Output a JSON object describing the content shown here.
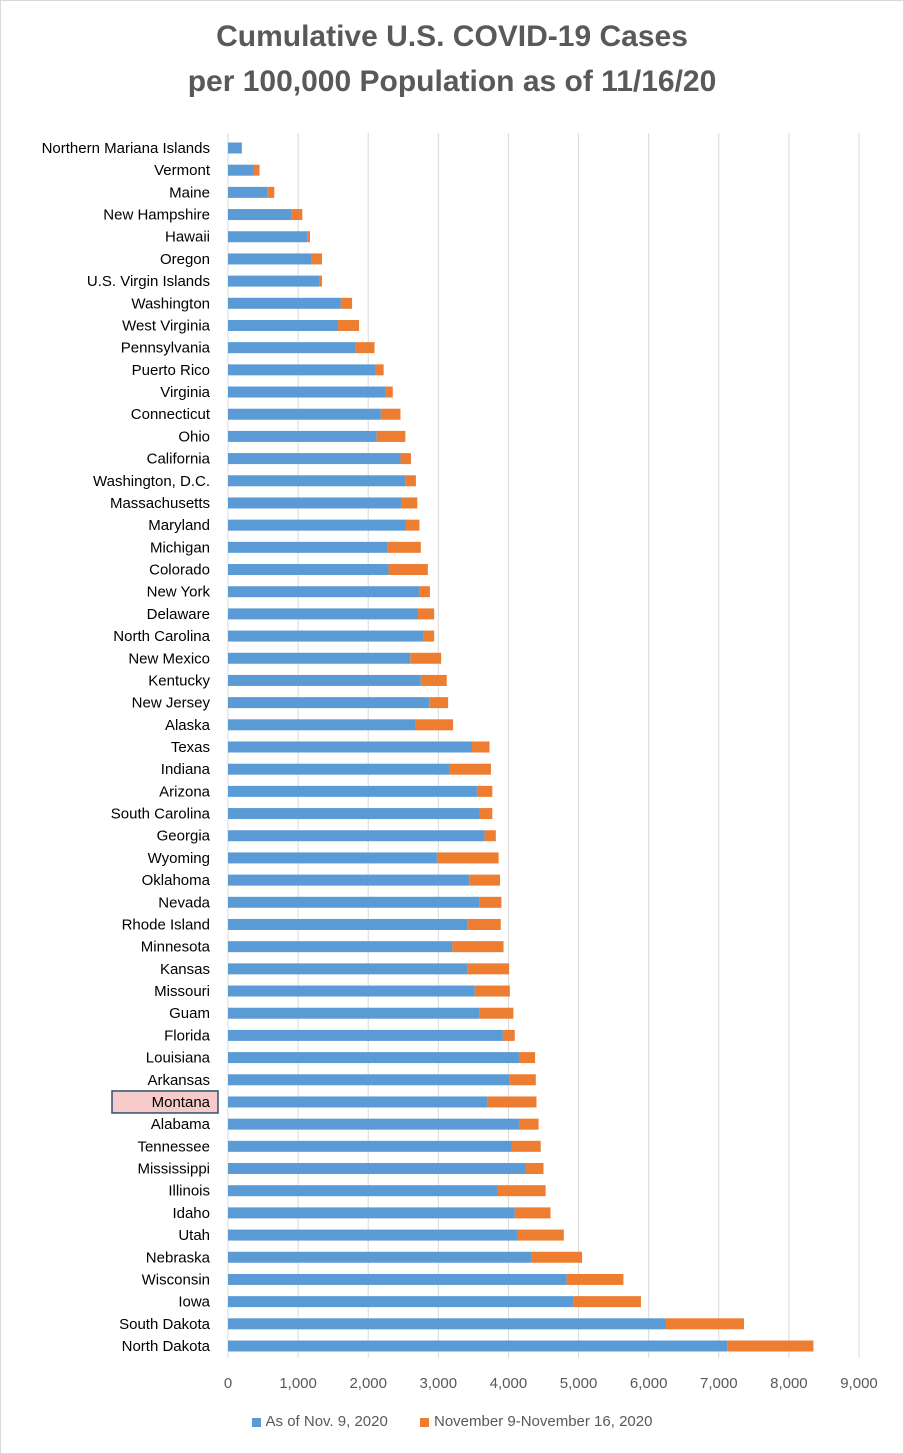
{
  "chart_data": {
    "type": "bar",
    "orientation": "horizontal",
    "stacked": true,
    "title": [
      "Cumulative U.S. COVID-19 Cases",
      "per 100,000 Population as of 11/16/20"
    ],
    "categories": [
      "Northern Mariana Islands",
      "Vermont",
      "Maine",
      "New Hampshire",
      "Hawaii",
      "Oregon",
      "U.S. Virgin Islands",
      "Washington",
      "West Virginia",
      "Pennsylvania",
      "Puerto Rico",
      "Virginia",
      "Connecticut",
      "Ohio",
      "California",
      "Washington, D.C.",
      "Massachusetts",
      "Maryland",
      "Michigan",
      "Colorado",
      "New York",
      "Delaware",
      "North Carolina",
      "New Mexico",
      "Kentucky",
      "New Jersey",
      "Alaska",
      "Texas",
      "Indiana",
      "Arizona",
      "South Carolina",
      "Georgia",
      "Wyoming",
      "Oklahoma",
      "Nevada",
      "Rhode Island",
      "Minnesota",
      "Kansas",
      "Missouri",
      "Guam",
      "Florida",
      "Louisiana",
      "Arkansas",
      "Montana",
      "Alabama",
      "Tennessee",
      "Mississippi",
      "Illinois",
      "Idaho",
      "Utah",
      "Nebraska",
      "Wisconsin",
      "Iowa",
      "South Dakota",
      "North Dakota"
    ],
    "series": [
      {
        "name": "As of Nov. 9, 2020",
        "color": "#5b9bd5",
        "values": [
          190,
          370,
          560,
          910,
          1130,
          1190,
          1310,
          1610,
          1570,
          1820,
          2110,
          2240,
          2180,
          2120,
          2460,
          2530,
          2480,
          2540,
          2280,
          2290,
          2730,
          2710,
          2790,
          2600,
          2750,
          2870,
          2680,
          3480,
          3160,
          3550,
          3580,
          3660,
          2980,
          3440,
          3590,
          3420,
          3200,
          3420,
          3520,
          3590,
          3920,
          4150,
          4020,
          3700,
          4150,
          4050,
          4250,
          3850,
          4090,
          4130,
          4330,
          4830,
          4930,
          6240,
          7120
        ]
      },
      {
        "name": "November 9-November 16, 2020",
        "color": "#ed7d31",
        "values": [
          10,
          80,
          100,
          150,
          40,
          150,
          30,
          160,
          300,
          270,
          110,
          110,
          280,
          410,
          150,
          150,
          220,
          190,
          470,
          560,
          150,
          230,
          150,
          440,
          370,
          270,
          530,
          250,
          590,
          220,
          190,
          160,
          880,
          440,
          310,
          470,
          730,
          590,
          500,
          480,
          170,
          230,
          370,
          700,
          280,
          410,
          250,
          680,
          510,
          660,
          720,
          810,
          960,
          1120,
          1230
        ]
      }
    ],
    "highlighted_category": "Montana",
    "xlim": [
      0,
      9000
    ],
    "xticks": [
      "0",
      "1,000",
      "2,000",
      "3,000",
      "4,000",
      "5,000",
      "6,000",
      "7,000",
      "8,000",
      "9,000"
    ],
    "grid": true,
    "legend_position": "bottom"
  }
}
